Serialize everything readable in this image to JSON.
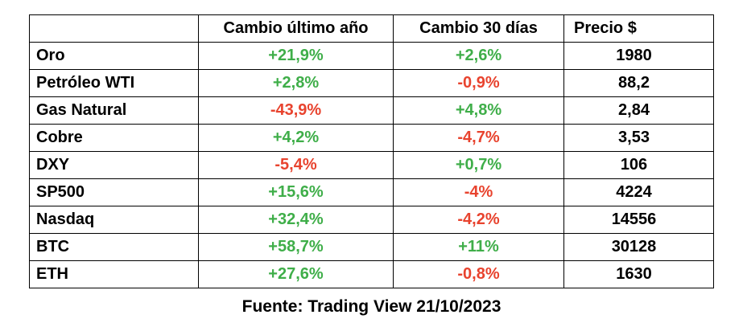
{
  "table": {
    "header": [
      "Cambio último año",
      "Cambio 30 días",
      "Precio $"
    ],
    "rows": [
      [
        "Oro",
        "+21,9%",
        "+2,6%",
        "1980"
      ],
      [
        "Petróleo WTI",
        "+2,8%",
        "-0,9%",
        "88,2"
      ],
      [
        "Gas Natural",
        "-43,9%",
        "+4,8%",
        "2,84"
      ],
      [
        "Cobre",
        "+4,2%",
        "-4,7%",
        "3,53"
      ],
      [
        "DXY",
        "-5,4%",
        "+0,7%",
        "106"
      ],
      [
        "SP500",
        "+15,6%",
        "-4%",
        "4224"
      ],
      [
        "Nasdaq",
        "+32,4%",
        "-4,2%",
        "14556"
      ],
      [
        "BTC",
        "+58,7%",
        "+11%",
        "30128"
      ],
      [
        "ETH",
        "+27,6%",
        "-0,8%",
        "1630"
      ]
    ],
    "colors": {
      "positive": "#3fae49",
      "negative": "#e8432e"
    }
  },
  "footer": "Fuente: Trading View 21/10/2023"
}
